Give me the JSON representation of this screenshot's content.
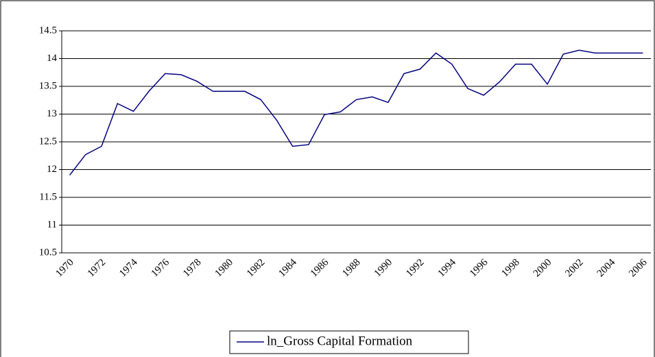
{
  "chart_data": {
    "type": "line",
    "categories": [
      "1970",
      null,
      "1972",
      null,
      "1974",
      null,
      "1976",
      null,
      "1978",
      null,
      "1980",
      null,
      "1982",
      null,
      "1984",
      null,
      "1986",
      null,
      "1988",
      null,
      "1990",
      null,
      "1992",
      null,
      "1994",
      null,
      "1996",
      null,
      "1998",
      null,
      "2000",
      null,
      "2002",
      null,
      "2004",
      null,
      "2006"
    ],
    "series": [
      {
        "name": "ln_Gross Capital Formation",
        "color": "#000080",
        "values": [
          11.9,
          12.27,
          12.42,
          13.19,
          13.05,
          13.42,
          13.73,
          13.71,
          13.59,
          13.41,
          13.41,
          13.41,
          13.26,
          12.89,
          12.42,
          12.45,
          12.99,
          13.04,
          13.26,
          13.31,
          13.21,
          13.73,
          13.81,
          14.1,
          13.9,
          13.46,
          13.34,
          13.58,
          13.9,
          13.9,
          13.54,
          14.08,
          14.15,
          14.1,
          14.1,
          14.1,
          14.1
        ]
      }
    ],
    "ylim": [
      10.5,
      14.5
    ],
    "yticks": [
      10.5,
      11,
      11.5,
      12,
      12.5,
      13,
      13.5,
      14,
      14.5
    ],
    "grid": true,
    "legend": "bottom"
  }
}
